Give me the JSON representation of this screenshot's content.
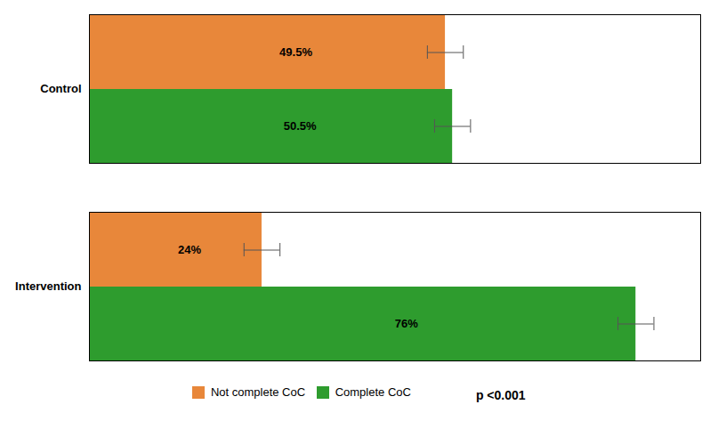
{
  "chart_data": {
    "type": "bar",
    "orientation": "horizontal",
    "categories": [
      "Intervention",
      "Control"
    ],
    "series": [
      {
        "name": "Not complete CoC",
        "color": "#E8873A",
        "values": [
          24,
          49.5
        ],
        "value_labels": [
          "24%",
          "49.5%"
        ],
        "errors": [
          2.5,
          2.5
        ]
      },
      {
        "name": "Complete CoC",
        "color": "#2E9C2E",
        "values": [
          76,
          50.5
        ],
        "value_labels": [
          "76%",
          "50.5%"
        ],
        "errors": [
          2.5,
          2.5
        ]
      }
    ],
    "xlim": [
      0,
      85
    ],
    "tick_labels": "y",
    "data_labels": true,
    "grid": false,
    "legend": "bottom",
    "annotations": [
      "p <0.001"
    ]
  }
}
